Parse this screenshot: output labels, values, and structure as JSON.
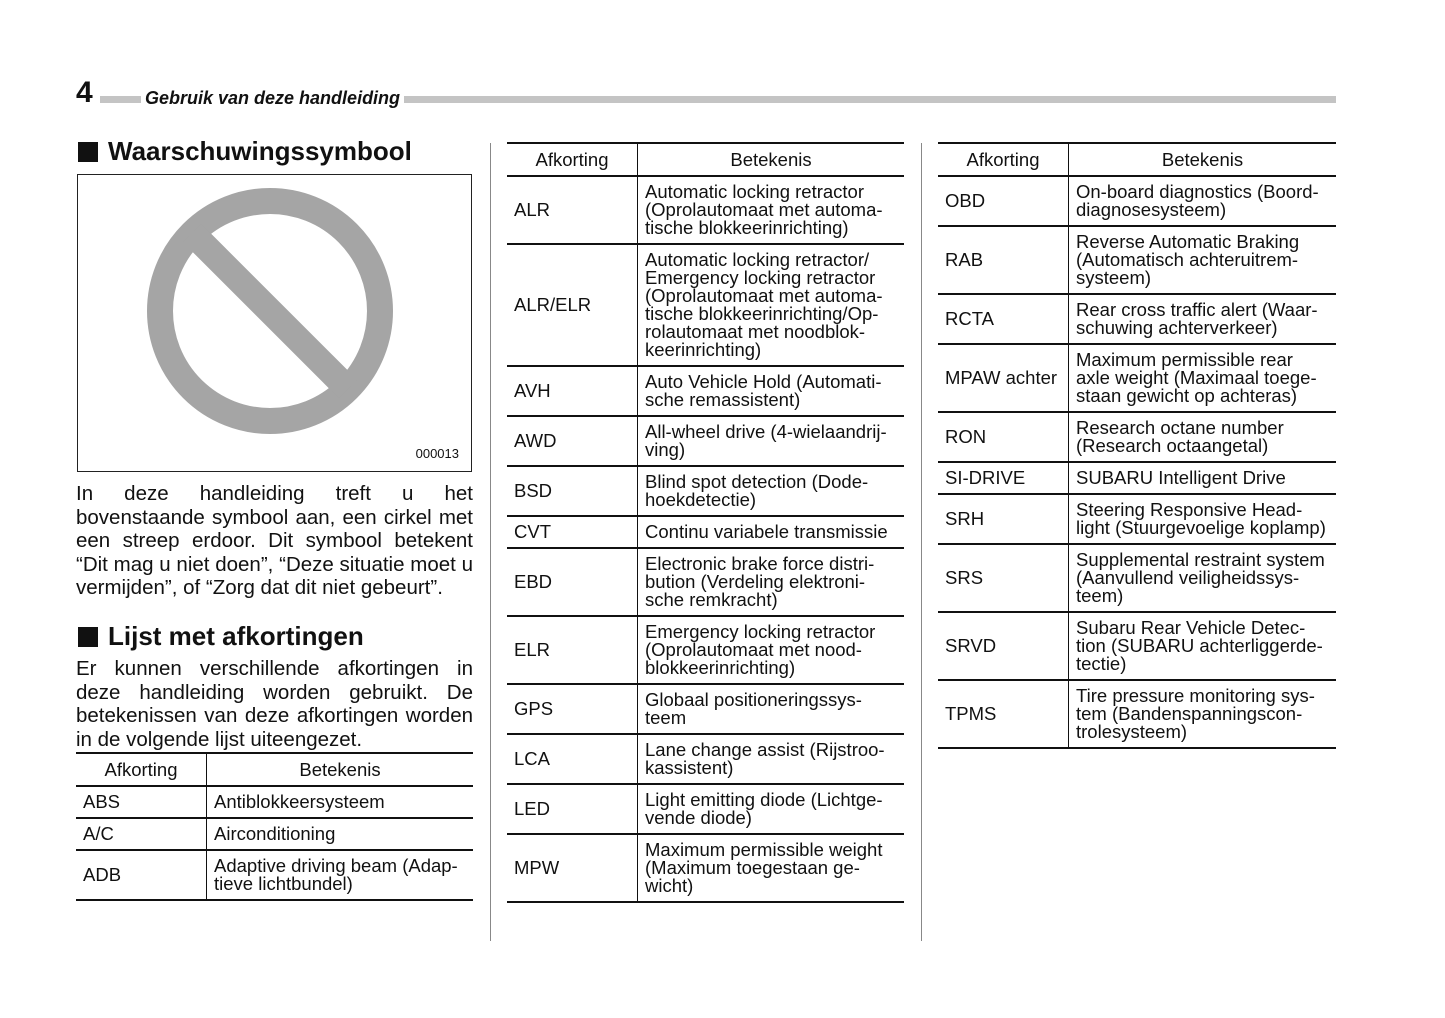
{
  "header": {
    "page_number": "4",
    "section_title": "Gebruik van deze handleiding"
  },
  "warning": {
    "heading": "Waarschuwingssymbool",
    "image_code": "000013",
    "icon": "prohibition-sign",
    "body": "In deze handleiding treft u het bovenstaande symbool aan, een cirkel met een streep erdoor. Dit symbool betekent “Dit mag u niet doen”, “Deze situatie moet u vermijden”, of “Zorg dat dit niet gebeurt”."
  },
  "abbreviations": {
    "heading": "Lijst met afkortingen",
    "body": "Er kunnen verschillende afkortingen in deze handleiding worden gebruikt. De betekenissen van deze afkortingen worden in de volgende lijst uiteengezet.",
    "col_abbr": "Afkorting",
    "col_meaning": "Betekenis",
    "table1": [
      {
        "abbr": "ABS",
        "meaning": "Antiblokkeersysteem"
      },
      {
        "abbr": "A/C",
        "meaning": "Airconditioning"
      },
      {
        "abbr": "ADB",
        "meaning": "Adaptive driving beam (Adap-\ntieve lichtbundel)"
      }
    ],
    "table2": [
      {
        "abbr": "ALR",
        "meaning": "Automatic locking retractor\n(Oprolautomaat met automa-\ntische blokkeerinrichting)"
      },
      {
        "abbr": "ALR/ELR",
        "meaning": "Automatic locking retractor/\nEmergency locking retractor\n(Oprolautomaat met automa-\ntische blokkeerinrichting/Op-\nrolautomaat met noodblok-\nkeerinrichting)"
      },
      {
        "abbr": "AVH",
        "meaning": "Auto Vehicle Hold (Automati-\nsche remassistent)"
      },
      {
        "abbr": "AWD",
        "meaning": "All-wheel drive (4-wielaandrij-\nving)"
      },
      {
        "abbr": "BSD",
        "meaning": "Blind spot detection (Dode-\nhoekdetectie)"
      },
      {
        "abbr": "CVT",
        "meaning": "Continu variabele transmissie"
      },
      {
        "abbr": "EBD",
        "meaning": "Electronic brake force distri-\nbution (Verdeling elektroni-\nsche remkracht)"
      },
      {
        "abbr": "ELR",
        "meaning": "Emergency locking retractor\n(Oprolautomaat met nood-\nblokkeerinrichting)"
      },
      {
        "abbr": "GPS",
        "meaning": "Globaal positioneringssys-\nteem"
      },
      {
        "abbr": "LCA",
        "meaning": "Lane change assist (Rijstroo-\nkassistent)"
      },
      {
        "abbr": "LED",
        "meaning": "Light emitting diode (Lichtge-\nvende diode)"
      },
      {
        "abbr": "MPW",
        "meaning": "Maximum permissible weight\n(Maximum toegestaan ge-\nwicht)"
      }
    ],
    "table3": [
      {
        "abbr": "OBD",
        "meaning": "On-board diagnostics (Boord-\ndiagnosesysteem)"
      },
      {
        "abbr": "RAB",
        "meaning": "Reverse Automatic Braking\n(Automatisch achteruitrem-\nsysteem)"
      },
      {
        "abbr": "RCTA",
        "meaning": "Rear cross traffic alert (Waar-\nschuwing achterverkeer)"
      },
      {
        "abbr": "MPAW achter",
        "meaning": "Maximum permissible rear\naxle weight (Maximaal toege-\nstaan gewicht op achteras)"
      },
      {
        "abbr": "RON",
        "meaning": "Research octane number\n(Research octaangetal)"
      },
      {
        "abbr": "SI-DRIVE",
        "meaning": "SUBARU Intelligent Drive"
      },
      {
        "abbr": "SRH",
        "meaning": "Steering Responsive Head-\nlight (Stuurgevoelige koplamp)"
      },
      {
        "abbr": "SRS",
        "meaning": "Supplemental restraint system\n(Aanvullend veiligheidssys-\nteem)"
      },
      {
        "abbr": "SRVD",
        "meaning": "Subaru Rear Vehicle Detec-\ntion (SUBARU achterliggerde-\ntectie)"
      },
      {
        "abbr": "TPMS",
        "meaning": "Tire pressure monitoring sys-\ntem (Bandenspanningscon-\ntrolesysteem)"
      }
    ]
  }
}
